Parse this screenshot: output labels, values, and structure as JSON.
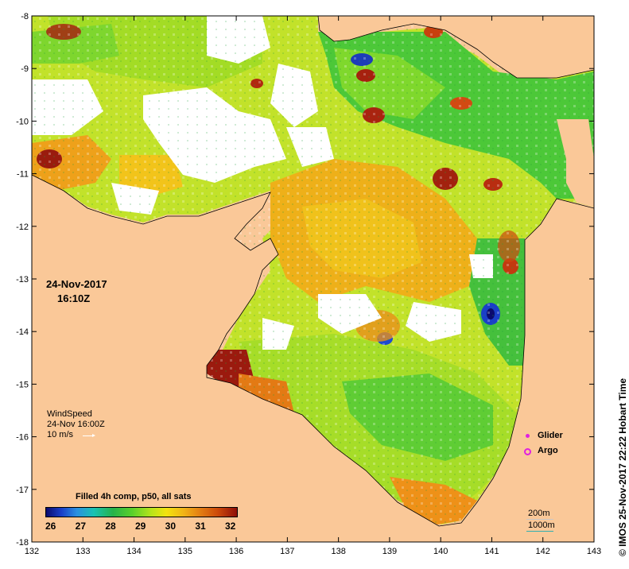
{
  "map": {
    "lon_ticks": [
      "132",
      "133",
      "134",
      "135",
      "136",
      "137",
      "138",
      "139",
      "140",
      "141",
      "142",
      "143"
    ],
    "lat_ticks": [
      "-8",
      "-9",
      "-10",
      "-11",
      "-12",
      "-13",
      "-14",
      "-15",
      "-16",
      "-17",
      "-18"
    ],
    "land_color": "#fac898",
    "no_data_color": "#ffffff",
    "coastline_color": "#000000"
  },
  "overlay": {
    "date": "24-Nov-2017",
    "time": "16:10Z",
    "wind_title": "WindSpeed",
    "wind_time": "24-Nov 16:00Z",
    "wind_scale": "10 m/s"
  },
  "legend": {
    "glider": {
      "label": "Glider",
      "color": "#e020e0"
    },
    "argo": {
      "label": "Argo",
      "color": "#e020e0"
    }
  },
  "colorbar": {
    "title": "Filled 4h comp, p50, all sats",
    "ticks": [
      "26",
      "27",
      "28",
      "29",
      "30",
      "31",
      "32"
    ]
  },
  "scale_bar": {
    "label_200": "200m",
    "label_1000": "1000m",
    "color_200": "#c8c8c8",
    "color_1000": "#30b0b0"
  },
  "credit": "©  IMOS 25-Nov-2017 22:22 Hobart Time"
}
